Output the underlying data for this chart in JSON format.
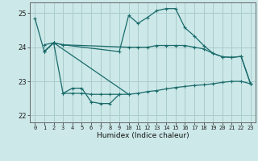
{
  "title": "",
  "xlabel": "Humidex (Indice chaleur)",
  "ylabel": "",
  "bg_color": "#cce8e8",
  "grid_color": "#aacccc",
  "line_color": "#1a6b6b",
  "xlim": [
    -0.5,
    23.5
  ],
  "ylim": [
    21.8,
    25.3
  ],
  "yticks": [
    22,
    23,
    24,
    25
  ],
  "xticks": [
    0,
    1,
    2,
    3,
    4,
    5,
    6,
    7,
    8,
    9,
    10,
    11,
    12,
    13,
    14,
    15,
    16,
    17,
    18,
    19,
    20,
    21,
    22,
    23
  ],
  "line1_x": [
    0,
    1,
    2,
    3,
    10,
    11,
    12,
    13,
    14,
    15,
    16,
    17,
    18,
    19,
    20,
    21,
    22,
    23
  ],
  "line1_y": [
    24.85,
    23.87,
    24.13,
    24.07,
    24.0,
    24.0,
    24.0,
    24.05,
    24.05,
    24.05,
    24.05,
    24.0,
    23.95,
    23.82,
    23.72,
    23.7,
    23.73,
    22.93
  ],
  "line2_x": [
    1,
    2,
    3,
    9,
    10,
    11,
    12,
    13,
    14,
    15,
    16,
    17,
    18,
    19,
    20,
    21,
    22,
    23
  ],
  "line2_y": [
    24.07,
    24.13,
    24.07,
    23.87,
    24.93,
    24.7,
    24.87,
    25.07,
    25.13,
    25.13,
    24.57,
    24.33,
    24.05,
    23.82,
    23.72,
    23.7,
    23.73,
    22.93
  ],
  "line3_x": [
    1,
    2,
    10,
    11,
    12,
    13,
    14,
    15,
    16,
    17,
    18,
    19,
    20,
    21,
    22,
    23
  ],
  "line3_y": [
    23.87,
    24.13,
    22.62,
    22.65,
    22.7,
    22.73,
    22.78,
    22.82,
    22.85,
    22.88,
    22.9,
    22.93,
    22.97,
    23.0,
    23.0,
    22.93
  ],
  "line4_x": [
    3,
    4,
    5,
    6,
    7,
    8,
    9
  ],
  "line4_y": [
    22.65,
    22.8,
    22.8,
    22.4,
    22.35,
    22.35,
    22.62
  ],
  "line5_x": [
    1,
    2,
    3,
    4,
    5,
    6,
    7,
    8,
    9,
    10
  ],
  "line5_y": [
    23.87,
    24.13,
    22.65,
    22.65,
    22.65,
    22.62,
    22.62,
    22.62,
    22.62,
    22.62
  ]
}
